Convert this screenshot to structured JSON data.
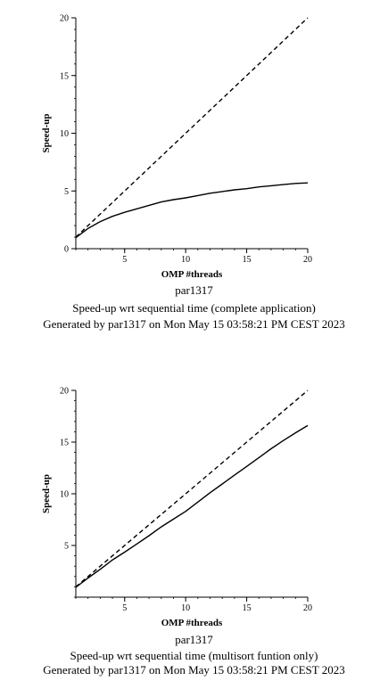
{
  "chart_data": [
    {
      "type": "line",
      "xlabel": "OMP #threads",
      "ylabel": "Speed-up",
      "xlim": [
        1,
        20
      ],
      "ylim": [
        0,
        20
      ],
      "xticks": [
        5,
        10,
        15,
        20
      ],
      "yticks": [
        0,
        5,
        10,
        15,
        20
      ],
      "grid": false,
      "caption": {
        "line1": "par1317",
        "line2": "Speed-up wrt sequential time (complete application)",
        "line3": "Generated by par1317 on Mon May 15 03:58:21 PM CEST 2023"
      },
      "series": [
        {
          "style": "dashed",
          "x": [
            1,
            20
          ],
          "y": [
            1,
            20
          ]
        },
        {
          "style": "solid",
          "x": [
            1,
            2,
            3,
            4,
            5,
            6,
            7,
            8,
            9,
            10,
            11,
            12,
            13,
            14,
            15,
            16,
            17,
            18,
            19,
            20
          ],
          "y": [
            0.95,
            1.75,
            2.35,
            2.8,
            3.15,
            3.45,
            3.75,
            4.05,
            4.25,
            4.4,
            4.6,
            4.8,
            4.95,
            5.1,
            5.2,
            5.35,
            5.45,
            5.55,
            5.65,
            5.7
          ]
        }
      ]
    },
    {
      "type": "line",
      "xlabel": "OMP #threads",
      "ylabel": "Speed-up",
      "xlim": [
        1,
        20
      ],
      "ylim": [
        0,
        20
      ],
      "xticks": [
        5,
        10,
        15,
        20
      ],
      "yticks": [
        5,
        10,
        15,
        20
      ],
      "grid": false,
      "caption": {
        "line1": "par1317",
        "line2": "Speed-up wrt sequential time (multisort funtion only)",
        "line3": "Generated by par1317 on Mon May 15 03:58:21 PM CEST 2023"
      },
      "series": [
        {
          "style": "dashed",
          "x": [
            1,
            20
          ],
          "y": [
            1,
            20
          ]
        },
        {
          "style": "solid",
          "x": [
            1,
            2,
            3,
            4,
            5,
            6,
            7,
            8,
            9,
            10,
            11,
            12,
            13,
            14,
            15,
            16,
            17,
            18,
            19,
            20
          ],
          "y": [
            0.95,
            1.85,
            2.7,
            3.6,
            4.35,
            5.15,
            5.95,
            6.8,
            7.55,
            8.3,
            9.2,
            10.1,
            10.95,
            11.8,
            12.65,
            13.5,
            14.35,
            15.15,
            15.9,
            16.6
          ]
        }
      ]
    }
  ]
}
